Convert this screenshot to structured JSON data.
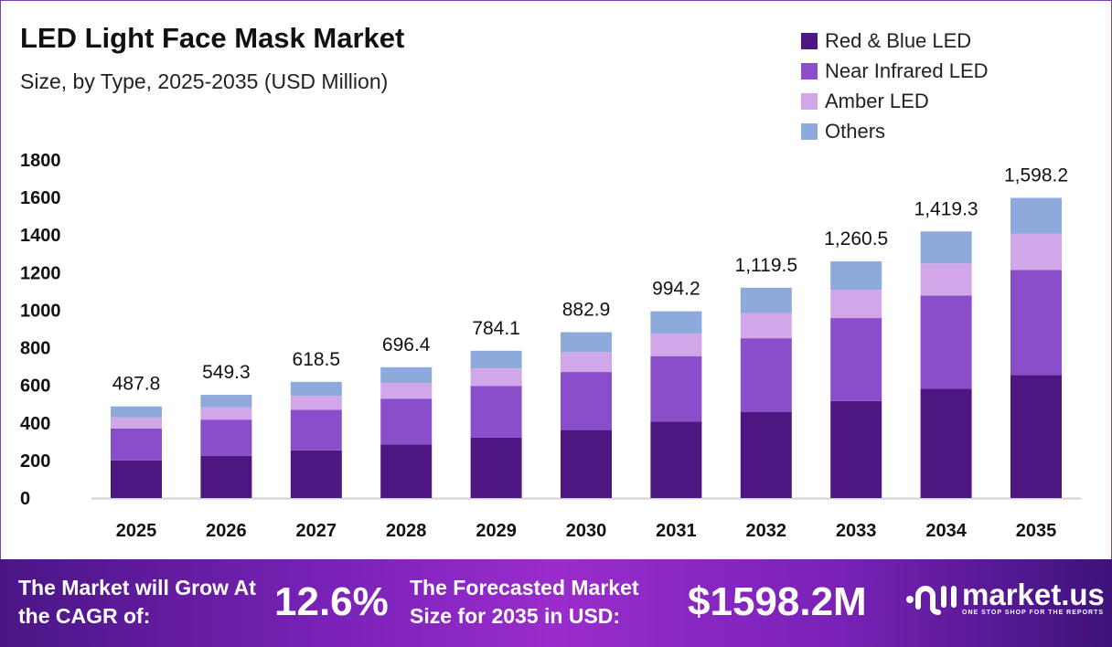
{
  "chart_data": {
    "type": "bar",
    "stacked": true,
    "title": "LED Light Face Mask Market",
    "subtitle": "Size, by Type, 2025-2035 (USD Million)",
    "categories": [
      "2025",
      "2026",
      "2027",
      "2028",
      "2029",
      "2030",
      "2031",
      "2032",
      "2033",
      "2034",
      "2035"
    ],
    "series": [
      {
        "name": "Red & Blue LED",
        "color": "#4e1680",
        "values": [
          200.0,
          225.2,
          253.6,
          285.5,
          321.5,
          362.0,
          407.6,
          459.0,
          516.8,
          581.9,
          655.3
        ]
      },
      {
        "name": "Near Infrared LED",
        "color": "#8a4ecb",
        "values": [
          170.7,
          192.3,
          216.5,
          243.7,
          274.4,
          309.0,
          348.0,
          391.8,
          441.2,
          496.8,
          559.4
        ]
      },
      {
        "name": "Amber LED",
        "color": "#d2a7ea",
        "values": [
          58.5,
          65.9,
          74.2,
          83.6,
          94.1,
          105.9,
          119.3,
          134.3,
          151.3,
          170.3,
          191.8
        ]
      },
      {
        "name": "Others",
        "color": "#8ea9dc",
        "values": [
          58.6,
          65.9,
          74.2,
          83.6,
          94.1,
          106.0,
          119.3,
          134.4,
          151.2,
          170.3,
          191.7
        ]
      }
    ],
    "totals": [
      "487.8",
      "549.3",
      "618.5",
      "696.4",
      "784.1",
      "882.9",
      "994.2",
      "1,119.5",
      "1,260.5",
      "1,419.3",
      "1,598.2"
    ],
    "yticks": [
      "0",
      "200",
      "400",
      "600",
      "800",
      "1000",
      "1200",
      "1400",
      "1600",
      "1800"
    ],
    "ylim": [
      0,
      1800
    ],
    "grid": false,
    "legend": "top-right"
  },
  "footer": {
    "cagr_label": "The Market will Grow At the CAGR of:",
    "cagr_value": "12.6%",
    "forecast_label": "The Forecasted Market Size for 2035 in USD:",
    "forecast_value": "$1598.2M",
    "logo_name": "market.us",
    "logo_tagline": "ONE STOP SHOP FOR THE REPORTS"
  }
}
